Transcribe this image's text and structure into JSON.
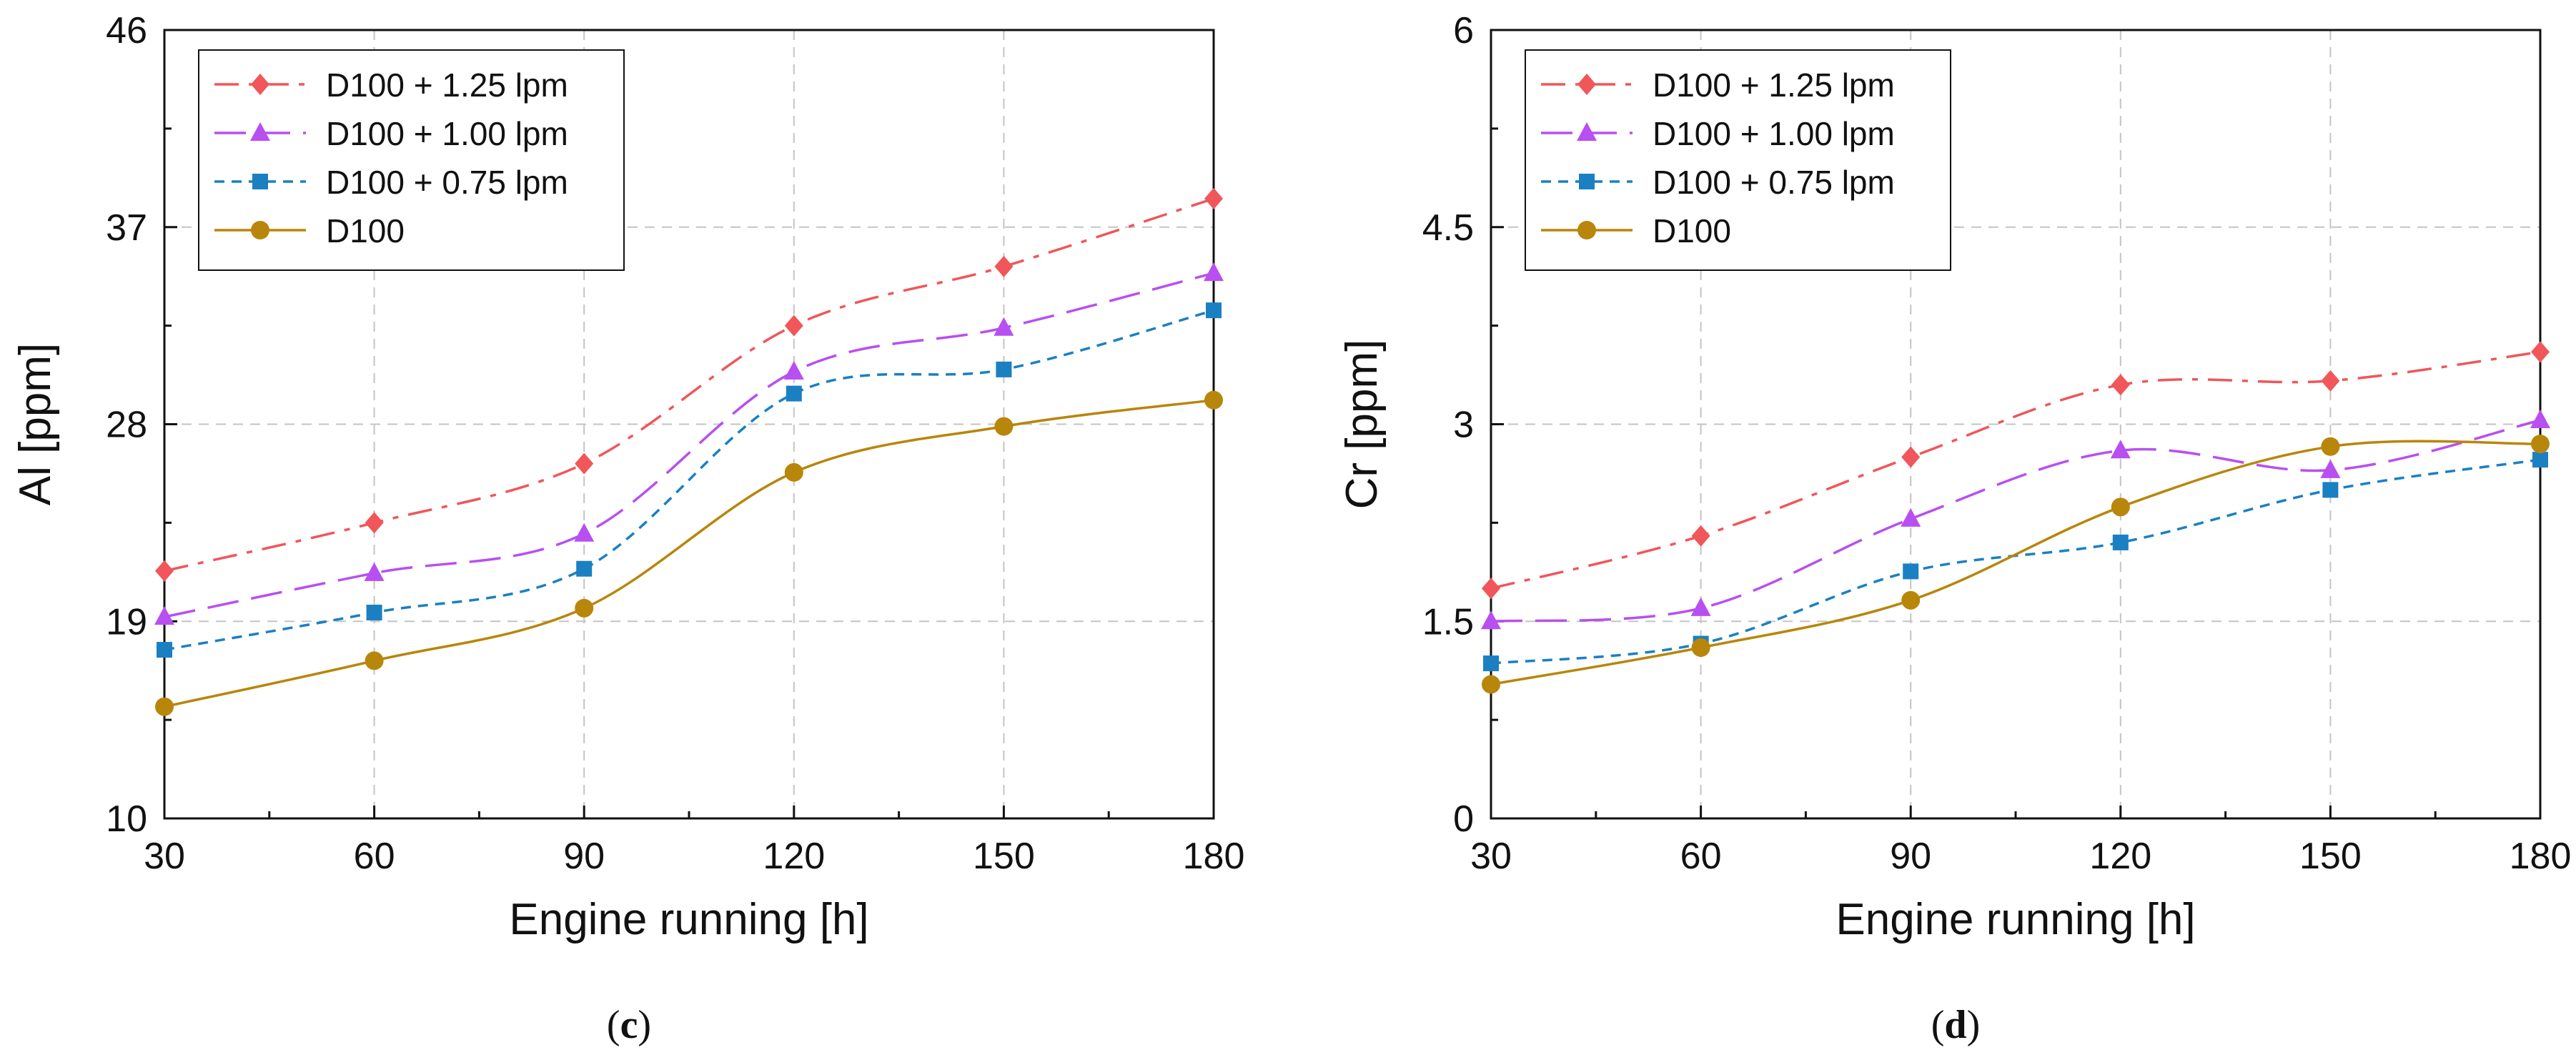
{
  "figure": {
    "captions": [
      "(c)",
      "(d)"
    ],
    "caption_parts": [
      {
        "open": "(",
        "letter": "c",
        "close": ")"
      },
      {
        "open": "(",
        "letter": "d",
        "close": ")"
      }
    ]
  },
  "chart_data": [
    {
      "type": "line",
      "title": "",
      "xlabel": "Engine running [h]",
      "ylabel": "Al [ppm]",
      "x": [
        30,
        60,
        90,
        120,
        150,
        180
      ],
      "xlim": [
        30,
        180
      ],
      "ylim": [
        10,
        46
      ],
      "xticks": [
        30,
        60,
        90,
        120,
        150,
        180
      ],
      "yticks": [
        10,
        19,
        28,
        37,
        46
      ],
      "xtick_labels": [
        "30",
        "60",
        "90",
        "120",
        "150",
        "180"
      ],
      "ytick_labels": [
        "10",
        "19",
        "28",
        "37",
        "46"
      ],
      "grid": true,
      "legend_position": "top-left",
      "series": [
        {
          "name": "D100 + 1.25 lpm",
          "marker": "diamond",
          "line": "dashdot",
          "color": "#f0565a",
          "values": [
            21.3,
            23.5,
            26.2,
            32.5,
            35.2,
            38.3
          ]
        },
        {
          "name": "D100 + 1.00 lpm",
          "marker": "triangle",
          "line": "longdash",
          "color": "#b84ff0",
          "values": [
            19.2,
            21.2,
            23.0,
            30.4,
            32.4,
            34.9
          ]
        },
        {
          "name": "D100 + 0.75 lpm",
          "marker": "square",
          "line": "shortdash",
          "color": "#1a80c2",
          "values": [
            17.7,
            19.4,
            21.4,
            29.4,
            30.5,
            33.2
          ]
        },
        {
          "name": "D100",
          "marker": "circle",
          "line": "solid",
          "color": "#b8860b",
          "values": [
            15.1,
            17.2,
            19.6,
            25.8,
            27.9,
            29.1
          ]
        }
      ]
    },
    {
      "type": "line",
      "title": "",
      "xlabel": "Engine running [h]",
      "ylabel": "Cr [ppm]",
      "x": [
        30,
        60,
        90,
        120,
        150,
        180
      ],
      "xlim": [
        30,
        180
      ],
      "ylim": [
        0,
        6
      ],
      "xticks": [
        30,
        60,
        90,
        120,
        150,
        180
      ],
      "yticks": [
        0,
        1.5,
        3,
        4.5,
        6
      ],
      "xtick_labels": [
        "30",
        "60",
        "90",
        "120",
        "150",
        "180"
      ],
      "ytick_labels": [
        "0",
        "1.5",
        "3",
        "4.5",
        "6"
      ],
      "grid": true,
      "legend_position": "top-left",
      "series": [
        {
          "name": "D100 + 1.25 lpm",
          "marker": "diamond",
          "line": "dashdot",
          "color": "#f0565a",
          "values": [
            1.75,
            2.15,
            2.75,
            3.3,
            3.33,
            3.55
          ]
        },
        {
          "name": "D100 + 1.00 lpm",
          "marker": "triangle",
          "line": "longdash",
          "color": "#b84ff0",
          "values": [
            1.5,
            1.6,
            2.28,
            2.8,
            2.65,
            3.03
          ]
        },
        {
          "name": "D100 + 0.75 lpm",
          "marker": "square",
          "line": "shortdash",
          "color": "#1a80c2",
          "values": [
            1.18,
            1.33,
            1.88,
            2.1,
            2.5,
            2.73
          ]
        },
        {
          "name": "D100",
          "marker": "circle",
          "line": "solid",
          "color": "#b8860b",
          "values": [
            1.02,
            1.3,
            1.66,
            2.37,
            2.83,
            2.85
          ]
        }
      ]
    }
  ]
}
